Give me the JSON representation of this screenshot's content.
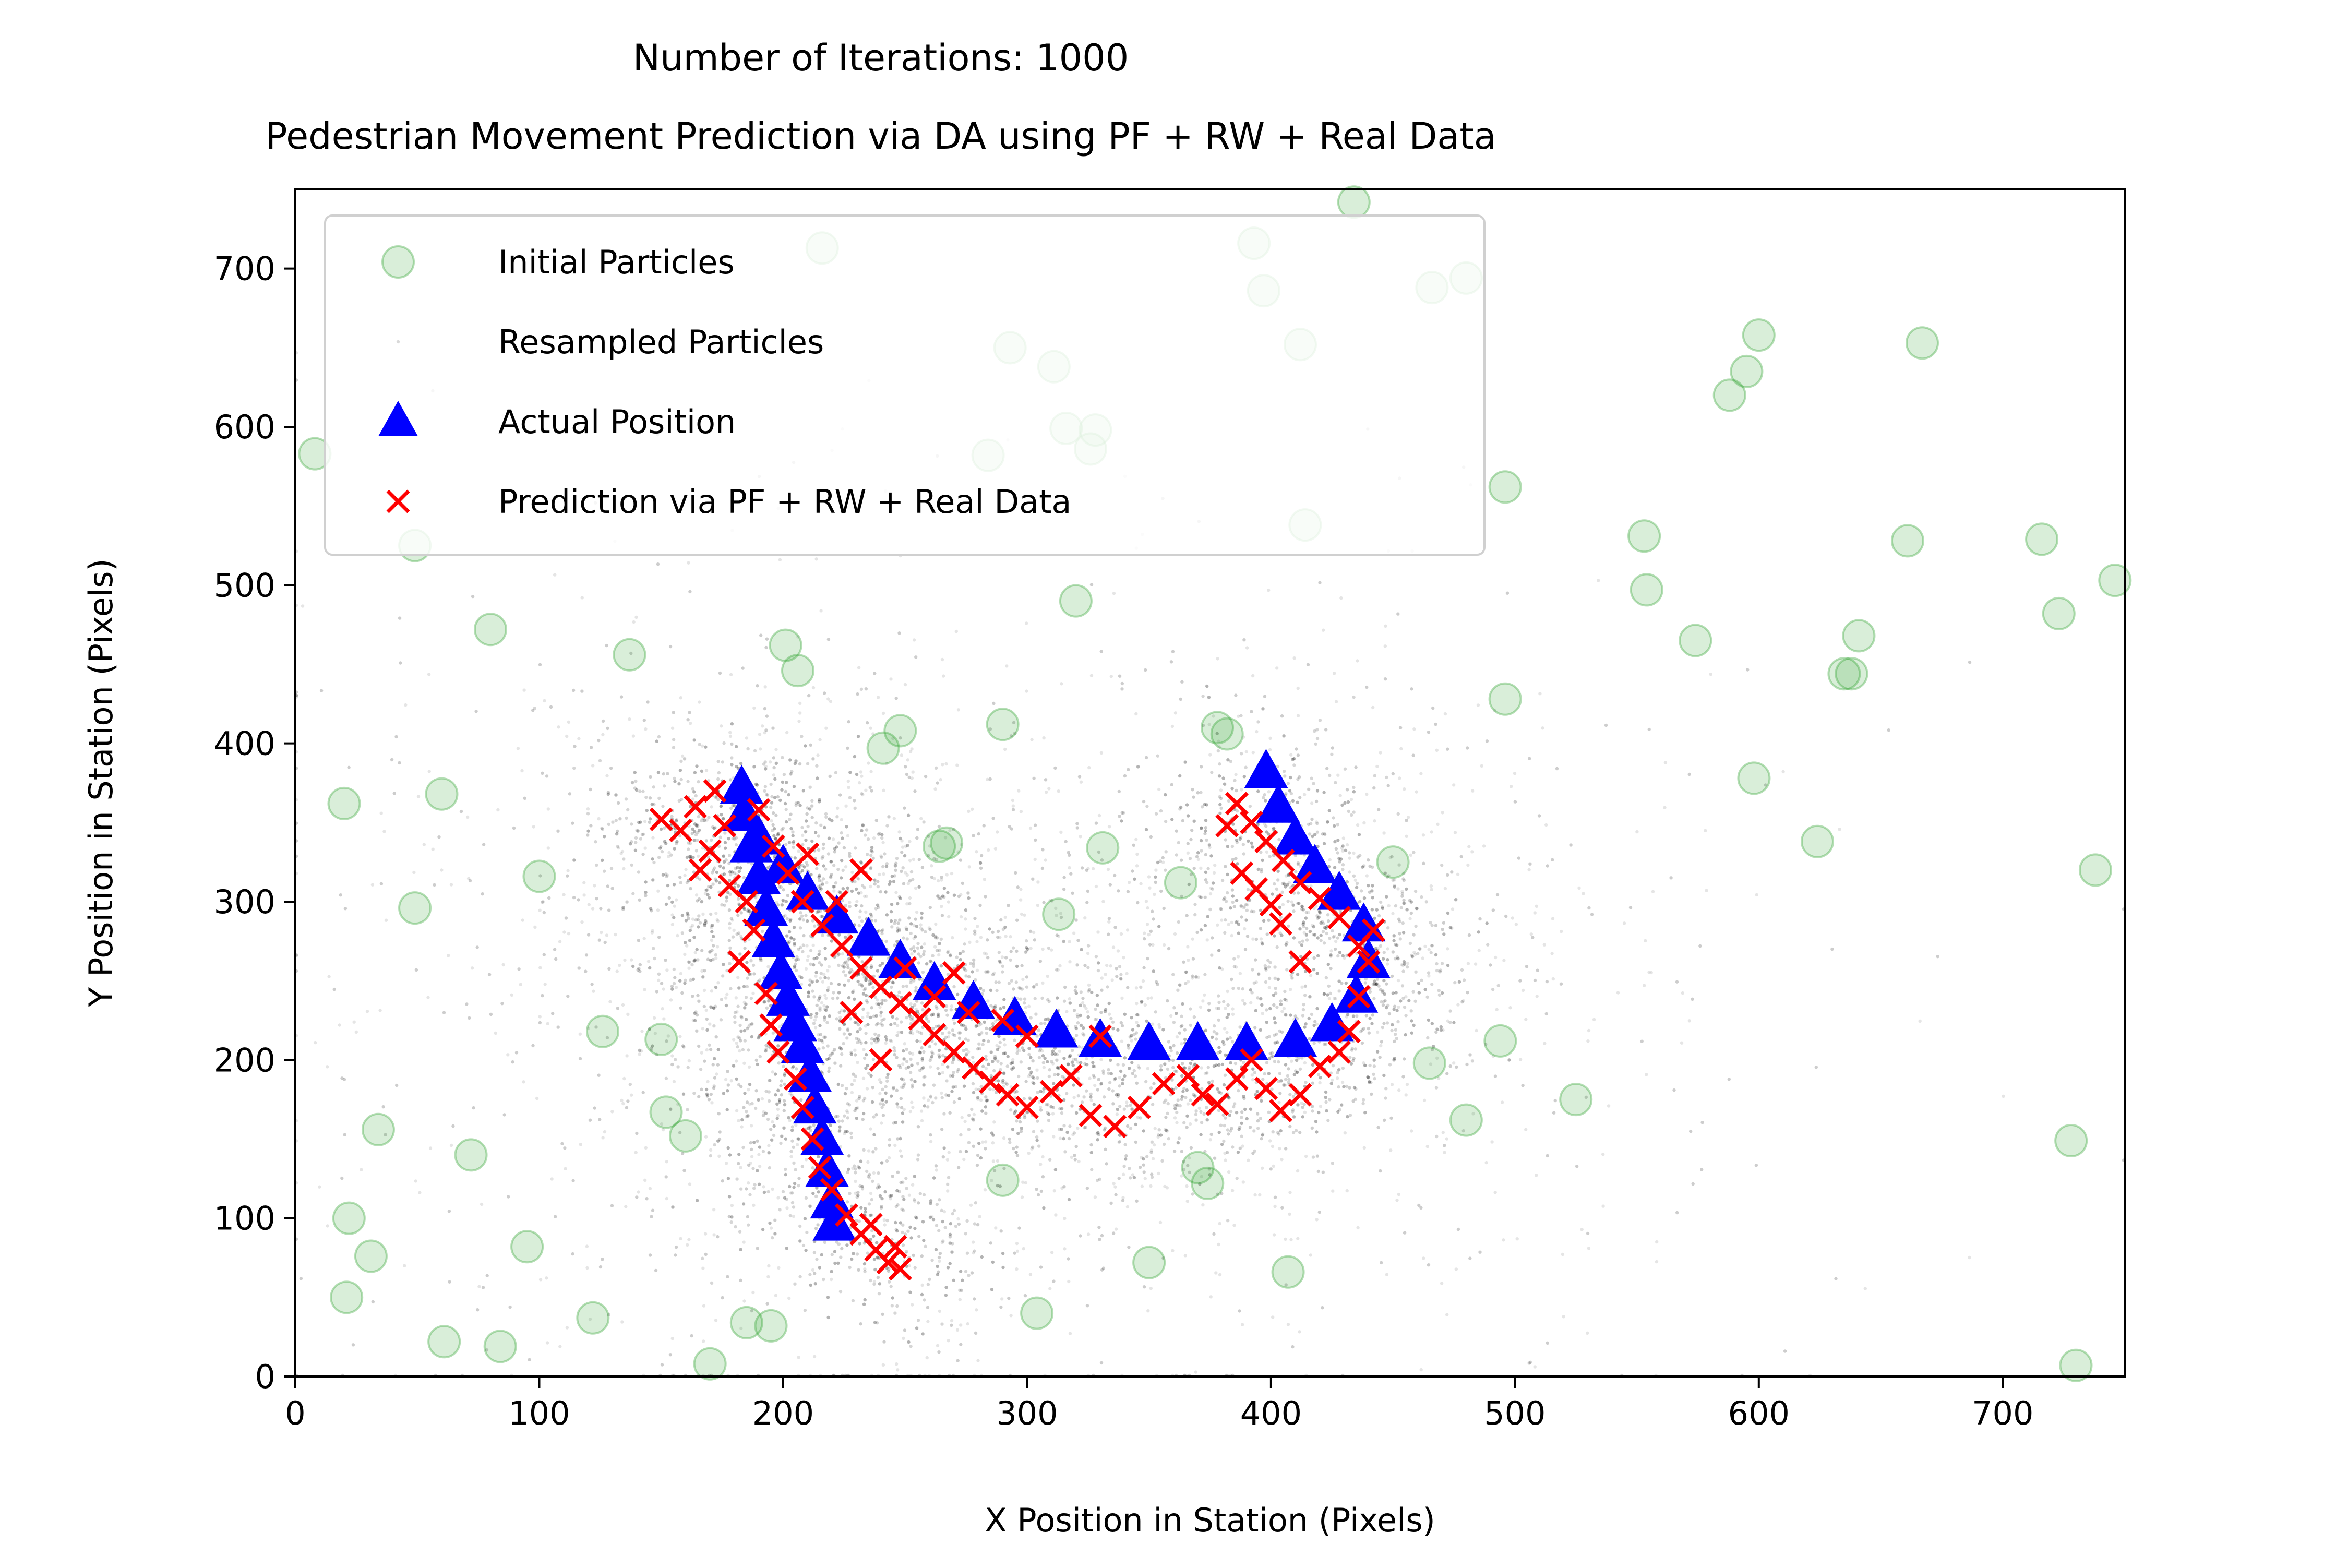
{
  "chart_data": {
    "type": "scatter",
    "title": "Number of Iterations: 1000",
    "subtitle": "Pedestrian Movement Prediction via DA using PF + RW + Real Data",
    "xlabel": "X Position in Station (Pixels)",
    "ylabel": "Y Position in Station (Pixels)",
    "xlim": [
      0,
      750
    ],
    "ylim": [
      0,
      750
    ],
    "x_ticks": [
      "0",
      "100",
      "200",
      "300",
      "400",
      "500",
      "600",
      "700"
    ],
    "y_ticks": [
      "0",
      "100",
      "200",
      "300",
      "400",
      "500",
      "600",
      "700"
    ],
    "grid": false,
    "legend": "upper-left",
    "series": [
      {
        "name": "Initial Particles",
        "marker": "circle",
        "color": "#2ca02c",
        "points": [
          [
            8,
            583
          ],
          [
            20,
            362
          ],
          [
            22,
            100
          ],
          [
            21,
            50
          ],
          [
            31,
            76
          ],
          [
            34,
            156
          ],
          [
            49,
            296
          ],
          [
            49,
            525
          ],
          [
            60,
            368
          ],
          [
            61,
            22
          ],
          [
            72,
            140
          ],
          [
            80,
            472
          ],
          [
            84,
            19
          ],
          [
            95,
            82
          ],
          [
            100,
            316
          ],
          [
            122,
            37
          ],
          [
            126,
            218
          ],
          [
            137,
            456
          ],
          [
            150,
            213
          ],
          [
            152,
            167
          ],
          [
            160,
            152
          ],
          [
            170,
            8
          ],
          [
            185,
            34
          ],
          [
            195,
            32
          ],
          [
            201,
            462
          ],
          [
            206,
            446
          ],
          [
            216,
            713
          ],
          [
            241,
            397
          ],
          [
            248,
            408
          ],
          [
            264,
            335
          ],
          [
            267,
            337
          ],
          [
            284,
            582
          ],
          [
            290,
            412
          ],
          [
            290,
            124
          ],
          [
            293,
            650
          ],
          [
            304,
            40
          ],
          [
            311,
            638
          ],
          [
            313,
            292
          ],
          [
            316,
            599
          ],
          [
            320,
            490
          ],
          [
            326,
            586
          ],
          [
            328,
            598
          ],
          [
            331,
            334
          ],
          [
            350,
            72
          ],
          [
            363,
            312
          ],
          [
            370,
            132
          ],
          [
            374,
            122
          ],
          [
            378,
            410
          ],
          [
            382,
            406
          ],
          [
            393,
            716
          ],
          [
            397,
            686
          ],
          [
            407,
            66
          ],
          [
            412,
            652
          ],
          [
            414,
            538
          ],
          [
            434,
            742
          ],
          [
            450,
            325
          ],
          [
            466,
            688
          ],
          [
            465,
            198
          ],
          [
            480,
            694
          ],
          [
            480,
            162
          ],
          [
            494,
            212
          ],
          [
            496,
            428
          ],
          [
            496,
            562
          ],
          [
            525,
            175
          ],
          [
            553,
            531
          ],
          [
            554,
            497
          ],
          [
            574,
            465
          ],
          [
            588,
            620
          ],
          [
            595,
            635
          ],
          [
            598,
            378
          ],
          [
            600,
            658
          ],
          [
            624,
            338
          ],
          [
            635,
            444
          ],
          [
            638,
            444
          ],
          [
            641,
            468
          ],
          [
            661,
            528
          ],
          [
            667,
            653
          ],
          [
            716,
            529
          ],
          [
            723,
            482
          ],
          [
            728,
            149
          ],
          [
            730,
            7
          ],
          [
            738,
            320
          ],
          [
            746,
            503
          ]
        ]
      },
      {
        "name": "Resampled Particles",
        "marker": "dot",
        "color": "#000000"
      },
      {
        "name": "Actual Position",
        "marker": "triangle",
        "color": "#0000ff",
        "points": [
          [
            183,
            372
          ],
          [
            184,
            355
          ],
          [
            187,
            335
          ],
          [
            190,
            315
          ],
          [
            193,
            295
          ],
          [
            196,
            275
          ],
          [
            199,
            255
          ],
          [
            202,
            238
          ],
          [
            205,
            222
          ],
          [
            208,
            208
          ],
          [
            211,
            190
          ],
          [
            213,
            170
          ],
          [
            216,
            150
          ],
          [
            218,
            130
          ],
          [
            220,
            110
          ],
          [
            221,
            96
          ],
          [
            190,
            340
          ],
          [
            200,
            322
          ],
          [
            210,
            305
          ],
          [
            222,
            290
          ],
          [
            235,
            276
          ],
          [
            248,
            262
          ],
          [
            262,
            248
          ],
          [
            278,
            236
          ],
          [
            295,
            226
          ],
          [
            312,
            218
          ],
          [
            330,
            212
          ],
          [
            350,
            210
          ],
          [
            370,
            210
          ],
          [
            390,
            210
          ],
          [
            410,
            212
          ],
          [
            425,
            222
          ],
          [
            435,
            240
          ],
          [
            440,
            262
          ],
          [
            438,
            285
          ],
          [
            428,
            305
          ],
          [
            418,
            322
          ],
          [
            410,
            340
          ],
          [
            403,
            360
          ],
          [
            398,
            382
          ]
        ]
      },
      {
        "name": "Prediction via PF + RW + Real Data",
        "marker": "x",
        "color": "#ff0000",
        "points": [
          [
            150,
            352
          ],
          [
            158,
            345
          ],
          [
            164,
            360
          ],
          [
            170,
            332
          ],
          [
            172,
            370
          ],
          [
            178,
            310
          ],
          [
            176,
            348
          ],
          [
            185,
            300
          ],
          [
            188,
            282
          ],
          [
            182,
            262
          ],
          [
            193,
            242
          ],
          [
            195,
            222
          ],
          [
            198,
            205
          ],
          [
            205,
            188
          ],
          [
            208,
            170
          ],
          [
            212,
            150
          ],
          [
            215,
            132
          ],
          [
            220,
            118
          ],
          [
            226,
            102
          ],
          [
            232,
            90
          ],
          [
            238,
            80
          ],
          [
            243,
            72
          ],
          [
            248,
            68
          ],
          [
            246,
            82
          ],
          [
            236,
            96
          ],
          [
            190,
            358
          ],
          [
            196,
            335
          ],
          [
            202,
            318
          ],
          [
            208,
            300
          ],
          [
            216,
            285
          ],
          [
            224,
            272
          ],
          [
            232,
            258
          ],
          [
            240,
            246
          ],
          [
            248,
            236
          ],
          [
            256,
            226
          ],
          [
            262,
            216
          ],
          [
            270,
            205
          ],
          [
            278,
            195
          ],
          [
            285,
            186
          ],
          [
            292,
            178
          ],
          [
            300,
            170
          ],
          [
            310,
            180
          ],
          [
            318,
            190
          ],
          [
            330,
            215
          ],
          [
            326,
            165
          ],
          [
            336,
            158
          ],
          [
            346,
            170
          ],
          [
            356,
            185
          ],
          [
            366,
            190
          ],
          [
            372,
            178
          ],
          [
            378,
            172
          ],
          [
            386,
            188
          ],
          [
            392,
            200
          ],
          [
            398,
            182
          ],
          [
            404,
            168
          ],
          [
            412,
            178
          ],
          [
            420,
            196
          ],
          [
            428,
            205
          ],
          [
            432,
            218
          ],
          [
            436,
            240
          ],
          [
            440,
            262
          ],
          [
            442,
            282
          ],
          [
            436,
            272
          ],
          [
            428,
            290
          ],
          [
            420,
            302
          ],
          [
            412,
            312
          ],
          [
            405,
            326
          ],
          [
            398,
            338
          ],
          [
            392,
            350
          ],
          [
            386,
            362
          ],
          [
            382,
            348
          ],
          [
            388,
            318
          ],
          [
            394,
            308
          ],
          [
            400,
            298
          ],
          [
            404,
            286
          ],
          [
            412,
            262
          ],
          [
            250,
            258
          ],
          [
            262,
            240
          ],
          [
            276,
            230
          ],
          [
            290,
            225
          ],
          [
            300,
            215
          ],
          [
            270,
            255
          ],
          [
            228,
            230
          ],
          [
            240,
            200
          ],
          [
            222,
            300
          ],
          [
            232,
            320
          ],
          [
            210,
            330
          ],
          [
            166,
            320
          ]
        ]
      }
    ]
  }
}
